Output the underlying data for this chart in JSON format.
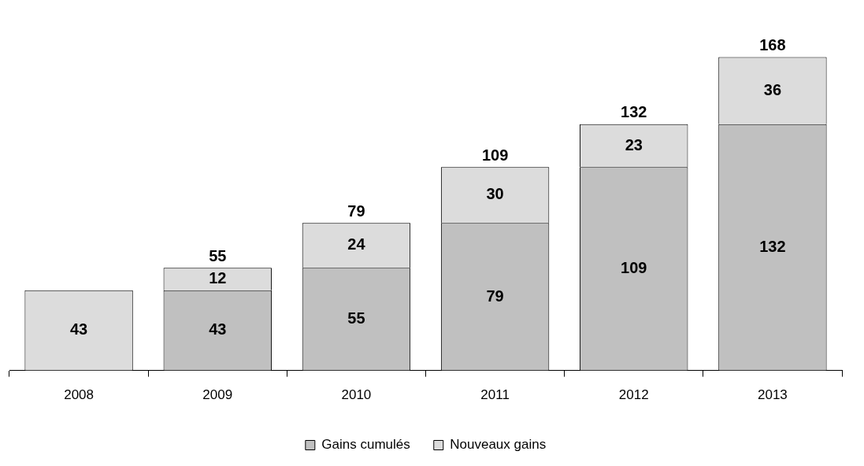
{
  "chart_data": {
    "type": "bar",
    "stacked": true,
    "categories": [
      "2008",
      "2009",
      "2010",
      "2011",
      "2012",
      "2013"
    ],
    "series": [
      {
        "name": "Gains cumulés",
        "color": "#c0c0c0",
        "values": [
          null,
          43,
          55,
          79,
          109,
          132
        ]
      },
      {
        "name": "Nouveaux gains",
        "color": "#dcdcdc",
        "values": [
          43,
          12,
          24,
          30,
          23,
          36
        ]
      }
    ],
    "data_labels": true,
    "totals": [
      null,
      "55",
      "79",
      "109",
      "132",
      "168"
    ],
    "legend": "bottom",
    "grid": false
  }
}
